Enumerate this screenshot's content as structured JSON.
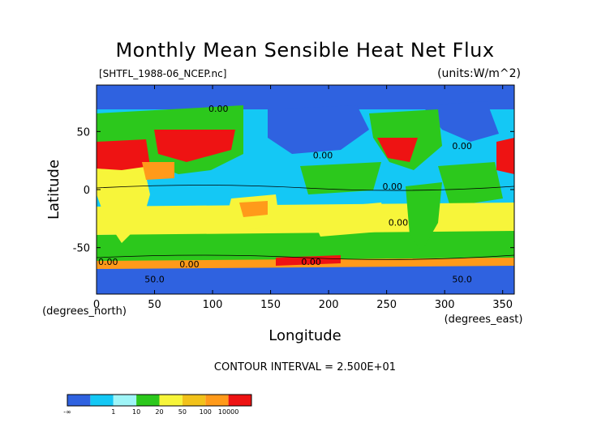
{
  "title": "Monthly Mean Sensible Heat Net Flux",
  "file_label": "[SHTFL_1988-06_NCEP.nc]",
  "units_label": "(units:W/m^2)",
  "contour_interval": "CONTOUR INTERVAL = 2.500E+01",
  "chart_data": {
    "type": "heatmap",
    "title": "Monthly Mean Sensible Heat Net Flux",
    "xlabel": "Longitude",
    "ylabel": "Latitude",
    "x_unit_note": "(degrees_east)",
    "y_unit_note": "(degrees_north)",
    "xlim": [
      0,
      360
    ],
    "ylim": [
      -90,
      90
    ],
    "x_ticks": [
      0,
      50,
      100,
      150,
      200,
      250,
      300,
      350
    ],
    "y_ticks": [
      -50,
      0,
      50
    ],
    "contour_labels": [
      {
        "text": "0.00",
        "lon": 195,
        "lat": 27
      },
      {
        "text": "0.00",
        "lon": 255,
        "lat": 0
      },
      {
        "text": "0.00",
        "lon": 315,
        "lat": 35
      },
      {
        "text": "0.00",
        "lon": 260,
        "lat": -31
      },
      {
        "text": "0.00",
        "lon": 10,
        "lat": -65
      },
      {
        "text": "0.00",
        "lon": 80,
        "lat": -67
      },
      {
        "text": "0.00",
        "lon": 185,
        "lat": -65
      },
      {
        "text": "50.0",
        "lon": 50,
        "lat": -80
      },
      {
        "text": "50.0",
        "lon": 315,
        "lat": -80
      },
      {
        "text": "0.00",
        "lon": 105,
        "lat": 67
      }
    ],
    "colorbar": {
      "tick_labels": [
        "-∞",
        "1",
        "10",
        "20",
        "50",
        "100",
        "10000"
      ],
      "colors": [
        "#2f62e0",
        "#14c8f5",
        "#9ff5f7",
        "#2cc81c",
        "#f7f53a",
        "#f2c21a",
        "#ff9a1a",
        "#ee1313"
      ]
    }
  }
}
